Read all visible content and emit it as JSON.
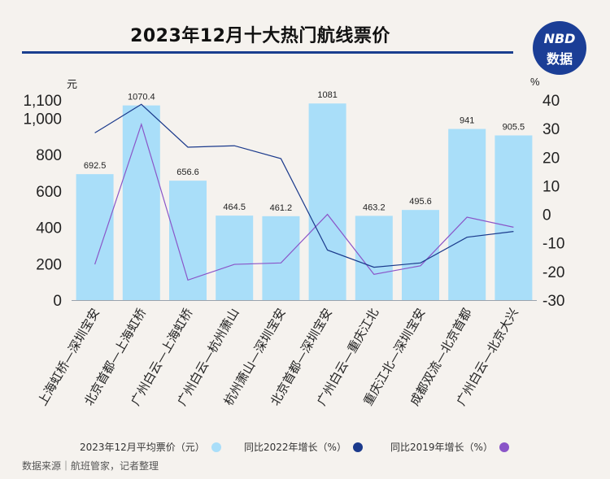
{
  "header": {
    "title": "2023年12月十大热门航线票价",
    "logo_line1": "NBD",
    "logo_line2": "数据"
  },
  "axes": {
    "left_unit": "元",
    "right_unit": "%"
  },
  "legend": {
    "bar_label": "2023年12月平均票价（元）",
    "line1_label": "同比2022年增长（%）",
    "line2_label": "同比2019年增长（%）"
  },
  "source": "数据来源｜航班管家，记者整理",
  "colors": {
    "bar": "#a9def9",
    "line1": "#1b3a8c",
    "line2": "#8a55c8",
    "title_rule": "#1a3f8f",
    "logo": "#1b3e96"
  },
  "chart_data": {
    "type": "bar",
    "categories": [
      "上海虹桥—深圳宝安",
      "北京首都—上海虹桥",
      "广州白云—上海虹桥",
      "广州白云—杭州萧山",
      "杭州萧山—深圳宝安",
      "北京首都—深圳宝安",
      "广州白云—重庆江北",
      "重庆江北—深圳宝安",
      "成都双流—北京首都",
      "广州白云—北京大兴"
    ],
    "series": [
      {
        "name": "2023年12月平均票价（元）",
        "type": "bar",
        "axis": "left",
        "values": [
          692.5,
          1070.4,
          656.6,
          464.5,
          461.2,
          1081,
          463.2,
          495.6,
          941,
          905.5
        ],
        "labels": [
          "692.5",
          "1070.4",
          "656.6",
          "464.5",
          "461.2",
          "1081",
          "463.2",
          "495.6",
          "941",
          "905.5"
        ]
      },
      {
        "name": "同比2022年增长（%）",
        "type": "line",
        "axis": "right",
        "values": [
          28.5,
          38.5,
          23.5,
          24,
          19.5,
          -12.5,
          -18.5,
          -17,
          -8,
          -6
        ]
      },
      {
        "name": "同比2019年增长（%）",
        "type": "line",
        "axis": "right",
        "values": [
          -17.5,
          31.5,
          -23,
          -17.5,
          -17,
          0,
          -21,
          -18,
          -1,
          -4.5
        ]
      }
    ],
    "left_axis": {
      "ylim": [
        0,
        1100
      ],
      "ticks": [
        "0",
        "200",
        "400",
        "600",
        "800",
        "1,000",
        "1,100"
      ]
    },
    "right_axis": {
      "ylim": [
        -30,
        40
      ],
      "ticks": [
        "40",
        "30",
        "20",
        "10",
        "0",
        "-10",
        "-20",
        "-30"
      ]
    }
  }
}
